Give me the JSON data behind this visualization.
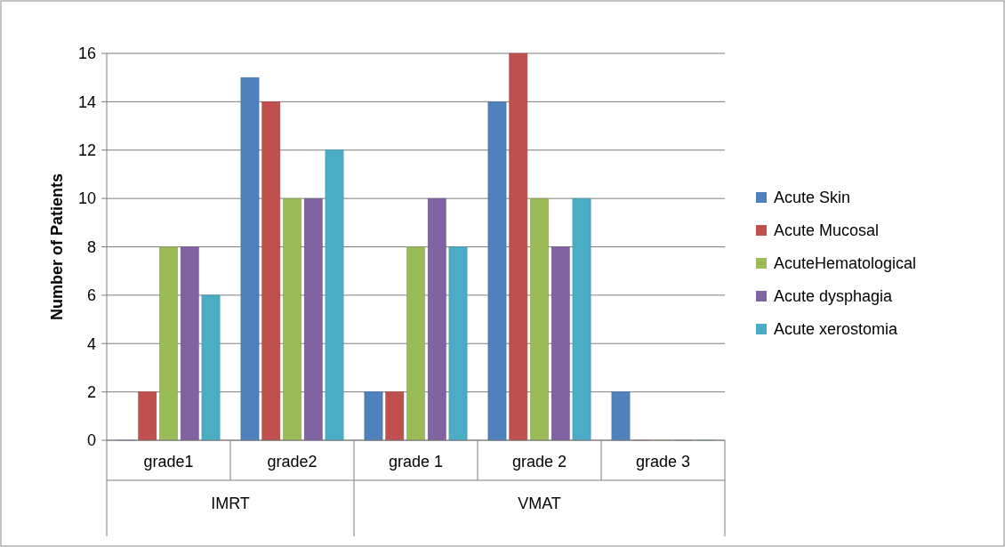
{
  "chart_data": {
    "type": "bar",
    "ylabel": "Number of Patients",
    "categories": [
      "grade1",
      "grade2",
      "grade 1",
      "grade 2",
      "grade 3"
    ],
    "series": [
      {
        "name": "Acute Skin",
        "color": "#4f81bd",
        "values": [
          0,
          15,
          2,
          14,
          2
        ]
      },
      {
        "name": "Acute Mucosal",
        "color": "#c0504d",
        "values": [
          2,
          14,
          2,
          16,
          0
        ]
      },
      {
        "name": "AcuteHematological",
        "color": "#9bbb59",
        "values": [
          8,
          10,
          8,
          10,
          0
        ]
      },
      {
        "name": "Acute dysphagia",
        "color": "#8064a2",
        "values": [
          8,
          10,
          10,
          8,
          0
        ]
      },
      {
        "name": "Acute xerostomia",
        "color": "#4bacc6",
        "values": [
          6,
          12,
          8,
          10,
          0
        ]
      }
    ],
    "annotations": [
      "IMRT",
      "VMAT"
    ],
    "ylim": [
      0,
      16
    ],
    "yticks": [
      0,
      2,
      4,
      6,
      8,
      10,
      12,
      14,
      16
    ],
    "grid": "y",
    "legend": "right"
  }
}
